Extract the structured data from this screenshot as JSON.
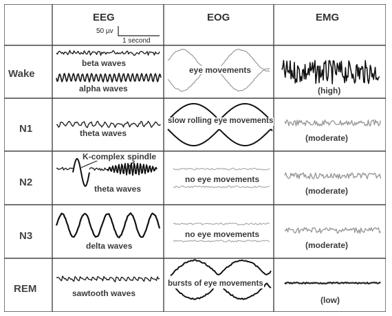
{
  "columns": [
    "EEG",
    "EOG",
    "EMG"
  ],
  "scale": {
    "amplitude": "50 µv",
    "time": "1 second"
  },
  "rows": [
    {
      "stage": "Wake",
      "eeg_labels": [
        "beta waves",
        "alpha waves"
      ],
      "eog_label": "eye movements",
      "emg_label": "(high)"
    },
    {
      "stage": "N1",
      "eeg_labels": [
        "theta waves"
      ],
      "eog_label": "slow rolling eye movements",
      "emg_label": "(moderate)"
    },
    {
      "stage": "N2",
      "eeg_labels": [
        "K-complex",
        "spindle",
        "theta waves"
      ],
      "eog_label": "no eye movements",
      "emg_label": "(moderate)"
    },
    {
      "stage": "N3",
      "eeg_labels": [
        "delta waves"
      ],
      "eog_label": "no eye movements",
      "emg_label": "(moderate)"
    },
    {
      "stage": "REM",
      "eeg_labels": [
        "sawtooth waves"
      ],
      "eog_label": "bursts of eye movements",
      "emg_label": "(low)"
    }
  ]
}
